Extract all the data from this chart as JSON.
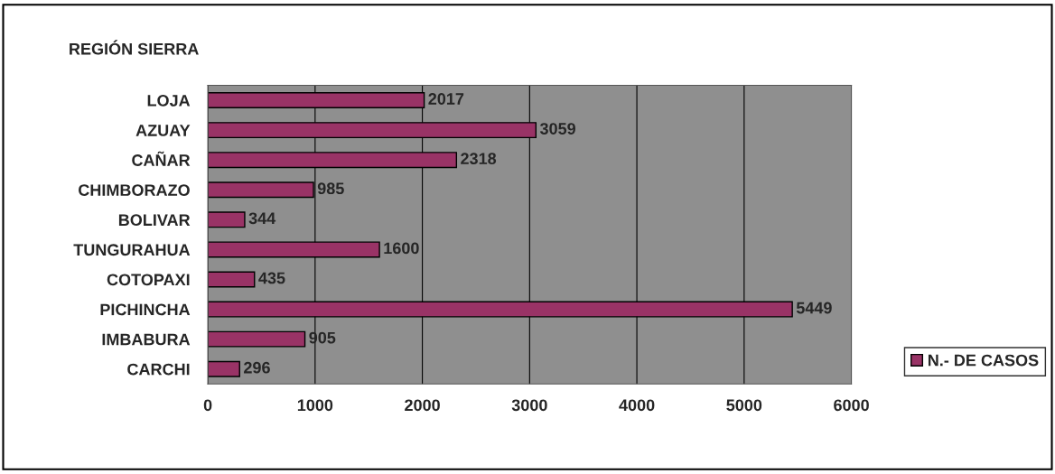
{
  "chart_data": {
    "type": "bar",
    "orientation": "horizontal",
    "title": "REGIÓN SIERRA",
    "categories": [
      "LOJA",
      "AZUAY",
      "CAÑAR",
      "CHIMBORAZO",
      "BOLIVAR",
      "TUNGURAHUA",
      "COTOPAXI",
      "PICHINCHA",
      "IMBABURA",
      "CARCHI"
    ],
    "series": [
      {
        "name": "N.- DE CASOS",
        "color": "#993366",
        "values": [
          2017,
          3059,
          2318,
          985,
          344,
          1600,
          435,
          5449,
          905,
          296
        ]
      }
    ],
    "xlim": [
      0,
      6000
    ],
    "xticks": [
      0,
      1000,
      2000,
      3000,
      4000,
      5000,
      6000
    ],
    "grid": "x",
    "legend": "right",
    "data_labels": true
  }
}
